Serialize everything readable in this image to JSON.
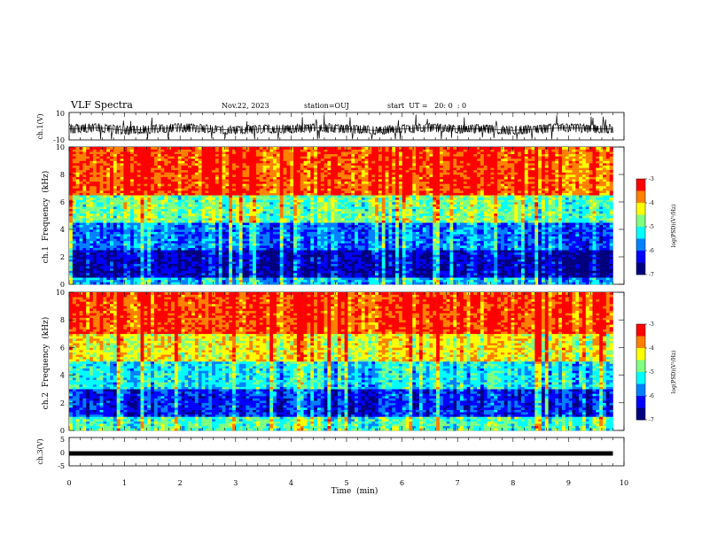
{
  "header": {
    "title": "VLF Spectra",
    "date": "Nov.22, 2023",
    "station": "station=OUJ",
    "start": "start  UT =   20: 0  : 0"
  },
  "chart_data": [
    {
      "type": "line",
      "ylabel": "ch.1(V)",
      "ylim": [
        -10,
        10
      ],
      "yticks": [
        "10",
        "-10"
      ],
      "xlim": [
        0,
        10
      ],
      "note": "noisy waveform trace centered near -2 V with spikes to about ±8 V",
      "x": [
        0.0,
        0.5,
        1.0,
        1.5,
        2.0,
        2.5,
        3.0,
        3.5,
        4.0,
        4.5,
        5.0,
        5.5,
        6.0,
        6.5,
        7.0,
        7.5,
        8.0,
        8.5,
        9.0,
        9.5,
        9.8
      ],
      "y": [
        -2,
        -1,
        -3,
        -2,
        -1,
        -2,
        -3,
        -2,
        -2,
        -1,
        -2,
        -3,
        -2,
        -1,
        -2,
        -2,
        -3,
        -2,
        -1,
        -2,
        -2
      ]
    },
    {
      "type": "heatmap",
      "ylabel": "ch.1  Frequency  (kHz)",
      "ylim": [
        0,
        10
      ],
      "yticks": [
        "0",
        "2",
        "4",
        "6",
        "8",
        "10"
      ],
      "xlim": [
        0,
        10
      ],
      "data_extent_min": 9.8,
      "colorbar": {
        "label": "log(PSD)(V²/Hz)",
        "range": [
          -7,
          -3
        ],
        "ticks": [
          "-3",
          "-4",
          "-5",
          "-6",
          "-7"
        ]
      },
      "bands": [
        {
          "freq_khz": [
            0,
            0.5
          ],
          "log_psd": -5.5
        },
        {
          "freq_khz": [
            0.5,
            2.5
          ],
          "log_psd": -6.5
        },
        {
          "freq_khz": [
            2.5,
            4.5
          ],
          "log_psd": -5.8
        },
        {
          "freq_khz": [
            4.5,
            6.5
          ],
          "log_psd": -4.8
        },
        {
          "freq_khz": [
            6.5,
            10
          ],
          "log_psd": -3.5
        }
      ]
    },
    {
      "type": "heatmap",
      "ylabel": "ch.2  Frequency  (kHz)",
      "ylim": [
        0,
        10
      ],
      "yticks": [
        "0",
        "2",
        "4",
        "6",
        "8",
        "10"
      ],
      "xlim": [
        0,
        10
      ],
      "data_extent_min": 9.8,
      "colorbar": {
        "label": "log(PSD)(V²/Hz)",
        "range": [
          -7,
          -3
        ],
        "ticks": [
          "-3",
          "-4",
          "-5",
          "-6",
          "-7"
        ]
      },
      "bands": [
        {
          "freq_khz": [
            0,
            1.0
          ],
          "log_psd": -5.0
        },
        {
          "freq_khz": [
            1.0,
            3.0
          ],
          "log_psd": -6.2
        },
        {
          "freq_khz": [
            3.0,
            5.0
          ],
          "log_psd": -5.3
        },
        {
          "freq_khz": [
            5.0,
            7.0
          ],
          "log_psd": -4.3
        },
        {
          "freq_khz": [
            7.0,
            10
          ],
          "log_psd": -3.5
        }
      ]
    },
    {
      "type": "line",
      "ylabel": "ch.3(V)",
      "ylim": [
        -5,
        5
      ],
      "yticks": [
        "5",
        "0",
        "-5"
      ],
      "xlim": [
        0,
        10
      ],
      "xlabel": "Time  (min)",
      "xticks": [
        "0",
        "1",
        "2",
        "3",
        "4",
        "5",
        "6",
        "7",
        "8",
        "9",
        "10"
      ],
      "x": [
        0,
        9.8
      ],
      "y": [
        0,
        0
      ]
    }
  ],
  "colors": {
    "colormap": [
      "#00007f",
      "#0000ff",
      "#0080ff",
      "#00ffff",
      "#80ff80",
      "#ffff00",
      "#ff8000",
      "#ff0000"
    ]
  }
}
